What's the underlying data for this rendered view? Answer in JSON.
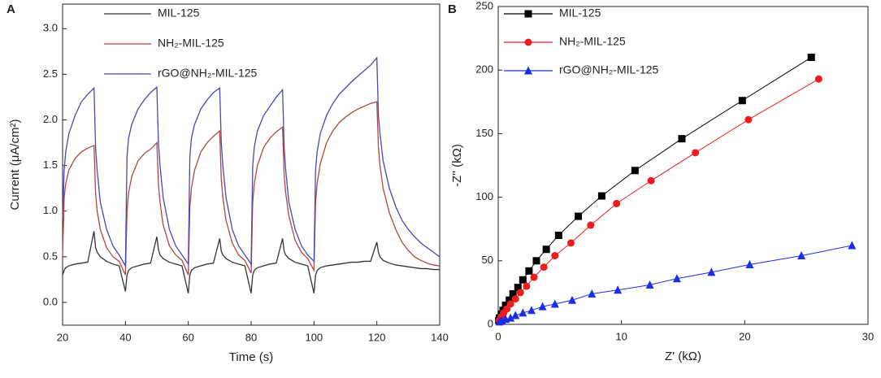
{
  "chart_data": [
    {
      "type": "line",
      "panel": "A",
      "xlabel": "Time (s)",
      "ylabel": "Current (μA/cm²)",
      "xlim": [
        20,
        140
      ],
      "ylim": [
        -0.25,
        3.27
      ],
      "xticks": [
        20,
        40,
        60,
        80,
        100,
        120,
        140
      ],
      "yticks": [
        {
          "value": 0,
          "label": "0.0"
        },
        0.5,
        {
          "value": 1,
          "label": "1.0"
        },
        1.5,
        {
          "value": 2,
          "label": "2.0"
        },
        2.5,
        {
          "value": 3,
          "label": "3.0"
        }
      ],
      "x": [
        20,
        20.5,
        21,
        22,
        24,
        26,
        28,
        30,
        30.5,
        31,
        32,
        34,
        36,
        38,
        40,
        40.5,
        41,
        42,
        44,
        46,
        48,
        50,
        50.5,
        51,
        52,
        54,
        56,
        58,
        60,
        60.5,
        61,
        62,
        64,
        66,
        68,
        70,
        70.5,
        71,
        72,
        74,
        76,
        78,
        80,
        80.5,
        81,
        82,
        84,
        86,
        88,
        90,
        90.5,
        91,
        92,
        94,
        96,
        98,
        100,
        100.5,
        101,
        102,
        104,
        106,
        108,
        110,
        112,
        114,
        116,
        118,
        120,
        120.5,
        121,
        122,
        124,
        126,
        128,
        130,
        132,
        134,
        136,
        138,
        140
      ],
      "series": [
        {
          "name": "MIL-125",
          "color": "#333333",
          "values": [
            0.3,
            0.35,
            0.38,
            0.4,
            0.42,
            0.43,
            0.44,
            0.78,
            0.6,
            0.55,
            0.5,
            0.45,
            0.42,
            0.4,
            0.12,
            0.3,
            0.35,
            0.38,
            0.4,
            0.42,
            0.43,
            0.72,
            0.58,
            0.52,
            0.48,
            0.44,
            0.42,
            0.4,
            0.1,
            0.3,
            0.35,
            0.38,
            0.4,
            0.42,
            0.43,
            0.7,
            0.56,
            0.52,
            0.48,
            0.44,
            0.42,
            0.4,
            0.1,
            0.3,
            0.35,
            0.38,
            0.4,
            0.42,
            0.43,
            0.7,
            0.56,
            0.52,
            0.48,
            0.44,
            0.42,
            0.4,
            0.1,
            0.3,
            0.35,
            0.38,
            0.4,
            0.41,
            0.42,
            0.43,
            0.44,
            0.44,
            0.45,
            0.45,
            0.66,
            0.55,
            0.5,
            0.46,
            0.43,
            0.41,
            0.4,
            0.39,
            0.38,
            0.37,
            0.37,
            0.36,
            0.36
          ]
        },
        {
          "name": "NH₂-MIL-125",
          "color": "#b5453e",
          "values": [
            0.5,
            1.15,
            1.3,
            1.45,
            1.58,
            1.65,
            1.69,
            1.72,
            1.2,
            1.0,
            0.8,
            0.6,
            0.5,
            0.45,
            0.3,
            1.0,
            1.2,
            1.38,
            1.55,
            1.63,
            1.68,
            1.75,
            1.3,
            1.1,
            0.85,
            0.62,
            0.52,
            0.46,
            0.3,
            1.05,
            1.25,
            1.45,
            1.65,
            1.75,
            1.82,
            1.88,
            1.35,
            1.15,
            0.9,
            0.65,
            0.52,
            0.46,
            0.32,
            1.1,
            1.3,
            1.5,
            1.7,
            1.8,
            1.87,
            1.92,
            1.4,
            1.2,
            0.95,
            0.68,
            0.55,
            0.48,
            0.35,
            1.1,
            1.3,
            1.52,
            1.75,
            1.88,
            1.97,
            2.03,
            2.08,
            2.12,
            2.15,
            2.18,
            2.2,
            1.7,
            1.5,
            1.25,
            0.98,
            0.8,
            0.66,
            0.57,
            0.5,
            0.46,
            0.43,
            0.41,
            0.4
          ]
        },
        {
          "name": "rGO@NH₂-MIL-125",
          "color": "#4848b0",
          "values": [
            0.9,
            1.45,
            1.65,
            1.85,
            2.05,
            2.2,
            2.28,
            2.35,
            1.7,
            1.45,
            1.1,
            0.8,
            0.62,
            0.52,
            0.4,
            1.6,
            1.8,
            1.95,
            2.12,
            2.22,
            2.3,
            2.36,
            1.75,
            1.5,
            1.15,
            0.8,
            0.62,
            0.52,
            0.42,
            1.6,
            1.8,
            1.95,
            2.12,
            2.22,
            2.3,
            2.35,
            1.75,
            1.5,
            1.15,
            0.8,
            0.62,
            0.52,
            0.42,
            1.5,
            1.7,
            1.88,
            2.05,
            2.15,
            2.25,
            2.33,
            1.7,
            1.45,
            1.1,
            0.8,
            0.62,
            0.52,
            0.45,
            1.45,
            1.65,
            1.85,
            2.05,
            2.18,
            2.28,
            2.35,
            2.42,
            2.48,
            2.54,
            2.6,
            2.68,
            2.05,
            1.85,
            1.55,
            1.25,
            1.05,
            0.9,
            0.8,
            0.72,
            0.65,
            0.6,
            0.55,
            0.5
          ]
        }
      ]
    },
    {
      "type": "scatter",
      "panel": "B",
      "xlabel": "Z' (kΩ)",
      "ylabel": "-Z'' (kΩ)",
      "xlim": [
        0,
        30
      ],
      "ylim": [
        0,
        250
      ],
      "xticks": [
        0,
        10,
        20,
        30
      ],
      "yticks": [
        0,
        50,
        100,
        150,
        200,
        250
      ],
      "series": [
        {
          "name": "MIL-125",
          "color": "#000000",
          "marker": "square",
          "x": [
            0.05,
            0.1,
            0.25,
            0.4,
            0.6,
            0.9,
            1.2,
            1.6,
            2.0,
            2.5,
            3.1,
            3.9,
            4.9,
            6.5,
            8.4,
            11.1,
            14.9,
            19.8,
            25.4
          ],
          "values": [
            3,
            5,
            8,
            11,
            15,
            19,
            24,
            29,
            35,
            42,
            50,
            59,
            70,
            85,
            101,
            121,
            146,
            176,
            210
          ]
        },
        {
          "name": "NH₂-MIL-125",
          "color": "#ee1c1c",
          "marker": "circle",
          "x": [
            0.1,
            0.25,
            0.45,
            0.7,
            1.0,
            1.4,
            1.8,
            2.3,
            2.9,
            3.7,
            4.6,
            5.9,
            7.5,
            9.6,
            12.4,
            16,
            20.3,
            26
          ],
          "values": [
            3,
            6,
            9,
            12,
            16,
            20,
            25,
            30,
            37,
            45,
            54,
            64,
            78,
            95,
            113,
            135,
            161,
            193
          ]
        },
        {
          "name": "rGO@NH₂-MIL-125",
          "color": "#1a2ee8",
          "marker": "triangle",
          "x": [
            0.1,
            0.3,
            0.6,
            1.0,
            1.4,
            2.0,
            2.7,
            3.6,
            4.6,
            6.0,
            7.6,
            9.7,
            12.3,
            14.5,
            17.3,
            20.4,
            24.6,
            28.7
          ],
          "values": [
            2,
            3,
            4,
            5,
            7,
            9,
            11,
            14,
            16,
            19,
            24,
            27,
            31,
            36,
            41,
            47,
            54,
            62
          ]
        }
      ]
    }
  ]
}
